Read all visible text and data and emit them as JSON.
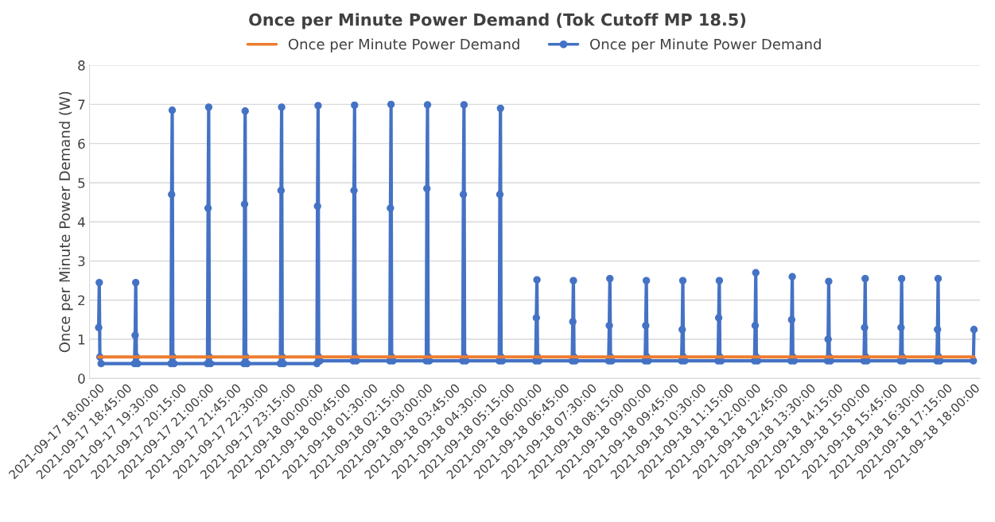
{
  "chart_data": {
    "type": "line",
    "title": "Once per Minute Power Demand (Tok Cutoff MP 18.5)",
    "ylabel": "Once per Minute Power Demand (W)",
    "series": [
      {
        "name": "Once per Minute Power Demand",
        "color": "#ed7d31",
        "marker": "none",
        "x": [
          "2021-09-17T18:00",
          "2021-09-18T18:00"
        ],
        "values": [
          0.55,
          0.55
        ]
      },
      {
        "name": "Once per Minute Power Demand",
        "color": "#4472c4",
        "marker": "circle",
        "x": [
          "2021-09-17T18:00",
          "2021-09-17T18:01",
          "2021-09-17T18:02",
          "2021-09-17T18:04",
          "2021-09-17T18:59",
          "2021-09-17T19:00",
          "2021-09-17T19:01",
          "2021-09-17T19:02",
          "2021-09-17T19:04",
          "2021-09-17T19:59",
          "2021-09-17T20:00",
          "2021-09-17T20:01",
          "2021-09-17T20:02",
          "2021-09-17T20:04",
          "2021-09-17T20:59",
          "2021-09-17T21:00",
          "2021-09-17T21:01",
          "2021-09-17T21:02",
          "2021-09-17T21:04",
          "2021-09-17T21:59",
          "2021-09-17T22:00",
          "2021-09-17T22:01",
          "2021-09-17T22:02",
          "2021-09-17T22:04",
          "2021-09-17T22:59",
          "2021-09-17T23:00",
          "2021-09-17T23:01",
          "2021-09-17T23:02",
          "2021-09-17T23:04",
          "2021-09-17T23:59",
          "2021-09-18T00:00",
          "2021-09-18T00:01",
          "2021-09-18T00:02",
          "2021-09-18T00:04",
          "2021-09-18T00:59",
          "2021-09-18T01:00",
          "2021-09-18T01:01",
          "2021-09-18T01:02",
          "2021-09-18T01:04",
          "2021-09-18T01:59",
          "2021-09-18T02:00",
          "2021-09-18T02:01",
          "2021-09-18T02:02",
          "2021-09-18T02:04",
          "2021-09-18T02:59",
          "2021-09-18T03:00",
          "2021-09-18T03:01",
          "2021-09-18T03:02",
          "2021-09-18T03:04",
          "2021-09-18T03:59",
          "2021-09-18T04:00",
          "2021-09-18T04:01",
          "2021-09-18T04:02",
          "2021-09-18T04:04",
          "2021-09-18T04:59",
          "2021-09-18T05:00",
          "2021-09-18T05:01",
          "2021-09-18T05:02",
          "2021-09-18T05:04",
          "2021-09-18T05:59",
          "2021-09-18T06:00",
          "2021-09-18T06:01",
          "2021-09-18T06:02",
          "2021-09-18T06:04",
          "2021-09-18T06:59",
          "2021-09-18T07:00",
          "2021-09-18T07:01",
          "2021-09-18T07:02",
          "2021-09-18T07:04",
          "2021-09-18T07:59",
          "2021-09-18T08:00",
          "2021-09-18T08:01",
          "2021-09-18T08:02",
          "2021-09-18T08:04",
          "2021-09-18T08:59",
          "2021-09-18T09:00",
          "2021-09-18T09:01",
          "2021-09-18T09:02",
          "2021-09-18T09:04",
          "2021-09-18T09:59",
          "2021-09-18T10:00",
          "2021-09-18T10:01",
          "2021-09-18T10:02",
          "2021-09-18T10:04",
          "2021-09-18T10:59",
          "2021-09-18T11:00",
          "2021-09-18T11:01",
          "2021-09-18T11:02",
          "2021-09-18T11:04",
          "2021-09-18T11:59",
          "2021-09-18T12:00",
          "2021-09-18T12:01",
          "2021-09-18T12:02",
          "2021-09-18T12:04",
          "2021-09-18T12:59",
          "2021-09-18T13:00",
          "2021-09-18T13:01",
          "2021-09-18T13:02",
          "2021-09-18T13:04",
          "2021-09-18T13:59",
          "2021-09-18T14:00",
          "2021-09-18T14:01",
          "2021-09-18T14:02",
          "2021-09-18T14:04",
          "2021-09-18T14:59",
          "2021-09-18T15:00",
          "2021-09-18T15:01",
          "2021-09-18T15:02",
          "2021-09-18T15:04",
          "2021-09-18T15:59",
          "2021-09-18T16:00",
          "2021-09-18T16:01",
          "2021-09-18T16:02",
          "2021-09-18T16:04",
          "2021-09-18T16:59",
          "2021-09-18T17:00",
          "2021-09-18T17:01",
          "2021-09-18T17:02",
          "2021-09-18T17:04",
          "2021-09-18T17:59",
          "2021-09-18T18:00"
        ],
        "values": [
          1.3,
          2.45,
          0.55,
          0.38,
          0.38,
          1.1,
          2.45,
          0.55,
          0.38,
          0.38,
          4.7,
          6.85,
          0.55,
          0.38,
          0.38,
          4.35,
          6.93,
          0.55,
          0.38,
          0.38,
          4.45,
          6.83,
          0.55,
          0.38,
          0.38,
          4.8,
          6.93,
          0.55,
          0.38,
          0.38,
          4.4,
          6.97,
          0.55,
          0.45,
          0.45,
          4.8,
          6.98,
          0.55,
          0.45,
          0.45,
          4.35,
          7.0,
          0.55,
          0.45,
          0.45,
          4.85,
          6.99,
          0.55,
          0.45,
          0.45,
          4.7,
          6.99,
          0.55,
          0.45,
          0.45,
          4.7,
          6.9,
          0.55,
          0.45,
          0.45,
          1.55,
          2.52,
          0.55,
          0.45,
          0.45,
          1.45,
          2.5,
          0.55,
          0.45,
          0.45,
          1.35,
          2.55,
          0.55,
          0.45,
          0.45,
          1.35,
          2.5,
          0.55,
          0.45,
          0.45,
          1.25,
          2.5,
          0.55,
          0.45,
          0.45,
          1.55,
          2.5,
          0.55,
          0.45,
          0.45,
          1.35,
          2.7,
          0.55,
          0.45,
          0.45,
          1.5,
          2.6,
          0.55,
          0.45,
          0.45,
          1.0,
          2.48,
          0.55,
          0.45,
          0.45,
          1.3,
          2.55,
          0.55,
          0.45,
          0.45,
          1.3,
          2.55,
          0.55,
          0.45,
          0.45,
          1.25,
          2.55,
          0.55,
          0.45,
          0.45,
          1.25
        ]
      }
    ],
    "xlim": [
      "2021-09-17T17:45",
      "2021-09-18T18:10"
    ],
    "xticks": [
      {
        "value": "2021-09-17T18:00",
        "label": "2021-09-17 18:00:00"
      },
      {
        "value": "2021-09-17T18:45",
        "label": "2021-09-17 18:45:00"
      },
      {
        "value": "2021-09-17T19:30",
        "label": "2021-09-17 19:30:00"
      },
      {
        "value": "2021-09-17T20:15",
        "label": "2021-09-17 20:15:00"
      },
      {
        "value": "2021-09-17T21:00",
        "label": "2021-09-17 21:00:00"
      },
      {
        "value": "2021-09-17T21:45",
        "label": "2021-09-17 21:45:00"
      },
      {
        "value": "2021-09-17T22:30",
        "label": "2021-09-17 22:30:00"
      },
      {
        "value": "2021-09-17T23:15",
        "label": "2021-09-17 23:15:00"
      },
      {
        "value": "2021-09-18T00:00",
        "label": "2021-09-18 00:00:00"
      },
      {
        "value": "2021-09-18T00:45",
        "label": "2021-09-18 00:45:00"
      },
      {
        "value": "2021-09-18T01:30",
        "label": "2021-09-18 01:30:00"
      },
      {
        "value": "2021-09-18T02:15",
        "label": "2021-09-18 02:15:00"
      },
      {
        "value": "2021-09-18T03:00",
        "label": "2021-09-18 03:00:00"
      },
      {
        "value": "2021-09-18T03:45",
        "label": "2021-09-18 03:45:00"
      },
      {
        "value": "2021-09-18T04:30",
        "label": "2021-09-18 04:30:00"
      },
      {
        "value": "2021-09-18T05:15",
        "label": "2021-09-18 05:15:00"
      },
      {
        "value": "2021-09-18T06:00",
        "label": "2021-09-18 06:00:00"
      },
      {
        "value": "2021-09-18T06:45",
        "label": "2021-09-18 06:45:00"
      },
      {
        "value": "2021-09-18T07:30",
        "label": "2021-09-18 07:30:00"
      },
      {
        "value": "2021-09-18T08:15",
        "label": "2021-09-18 08:15:00"
      },
      {
        "value": "2021-09-18T09:00",
        "label": "2021-09-18 09:00:00"
      },
      {
        "value": "2021-09-18T09:45",
        "label": "2021-09-18 09:45:00"
      },
      {
        "value": "2021-09-18T10:30",
        "label": "2021-09-18 10:30:00"
      },
      {
        "value": "2021-09-18T11:15",
        "label": "2021-09-18 11:15:00"
      },
      {
        "value": "2021-09-18T12:00",
        "label": "2021-09-18 12:00:00"
      },
      {
        "value": "2021-09-18T12:45",
        "label": "2021-09-18 12:45:00"
      },
      {
        "value": "2021-09-18T13:30",
        "label": "2021-09-18 13:30:00"
      },
      {
        "value": "2021-09-18T14:15",
        "label": "2021-09-18 14:15:00"
      },
      {
        "value": "2021-09-18T15:00",
        "label": "2021-09-18 15:00:00"
      },
      {
        "value": "2021-09-18T15:45",
        "label": "2021-09-18 15:45:00"
      },
      {
        "value": "2021-09-18T16:30",
        "label": "2021-09-18 16:30:00"
      },
      {
        "value": "2021-09-18T17:15",
        "label": "2021-09-18 17:15:00"
      },
      {
        "value": "2021-09-18T18:00",
        "label": "2021-09-18 18:00:00"
      }
    ],
    "ylim": [
      0,
      8
    ],
    "yticks": [
      0,
      1,
      2,
      3,
      4,
      5,
      6,
      7,
      8
    ],
    "grid": "y",
    "legend": "top",
    "line_style": "solid"
  }
}
